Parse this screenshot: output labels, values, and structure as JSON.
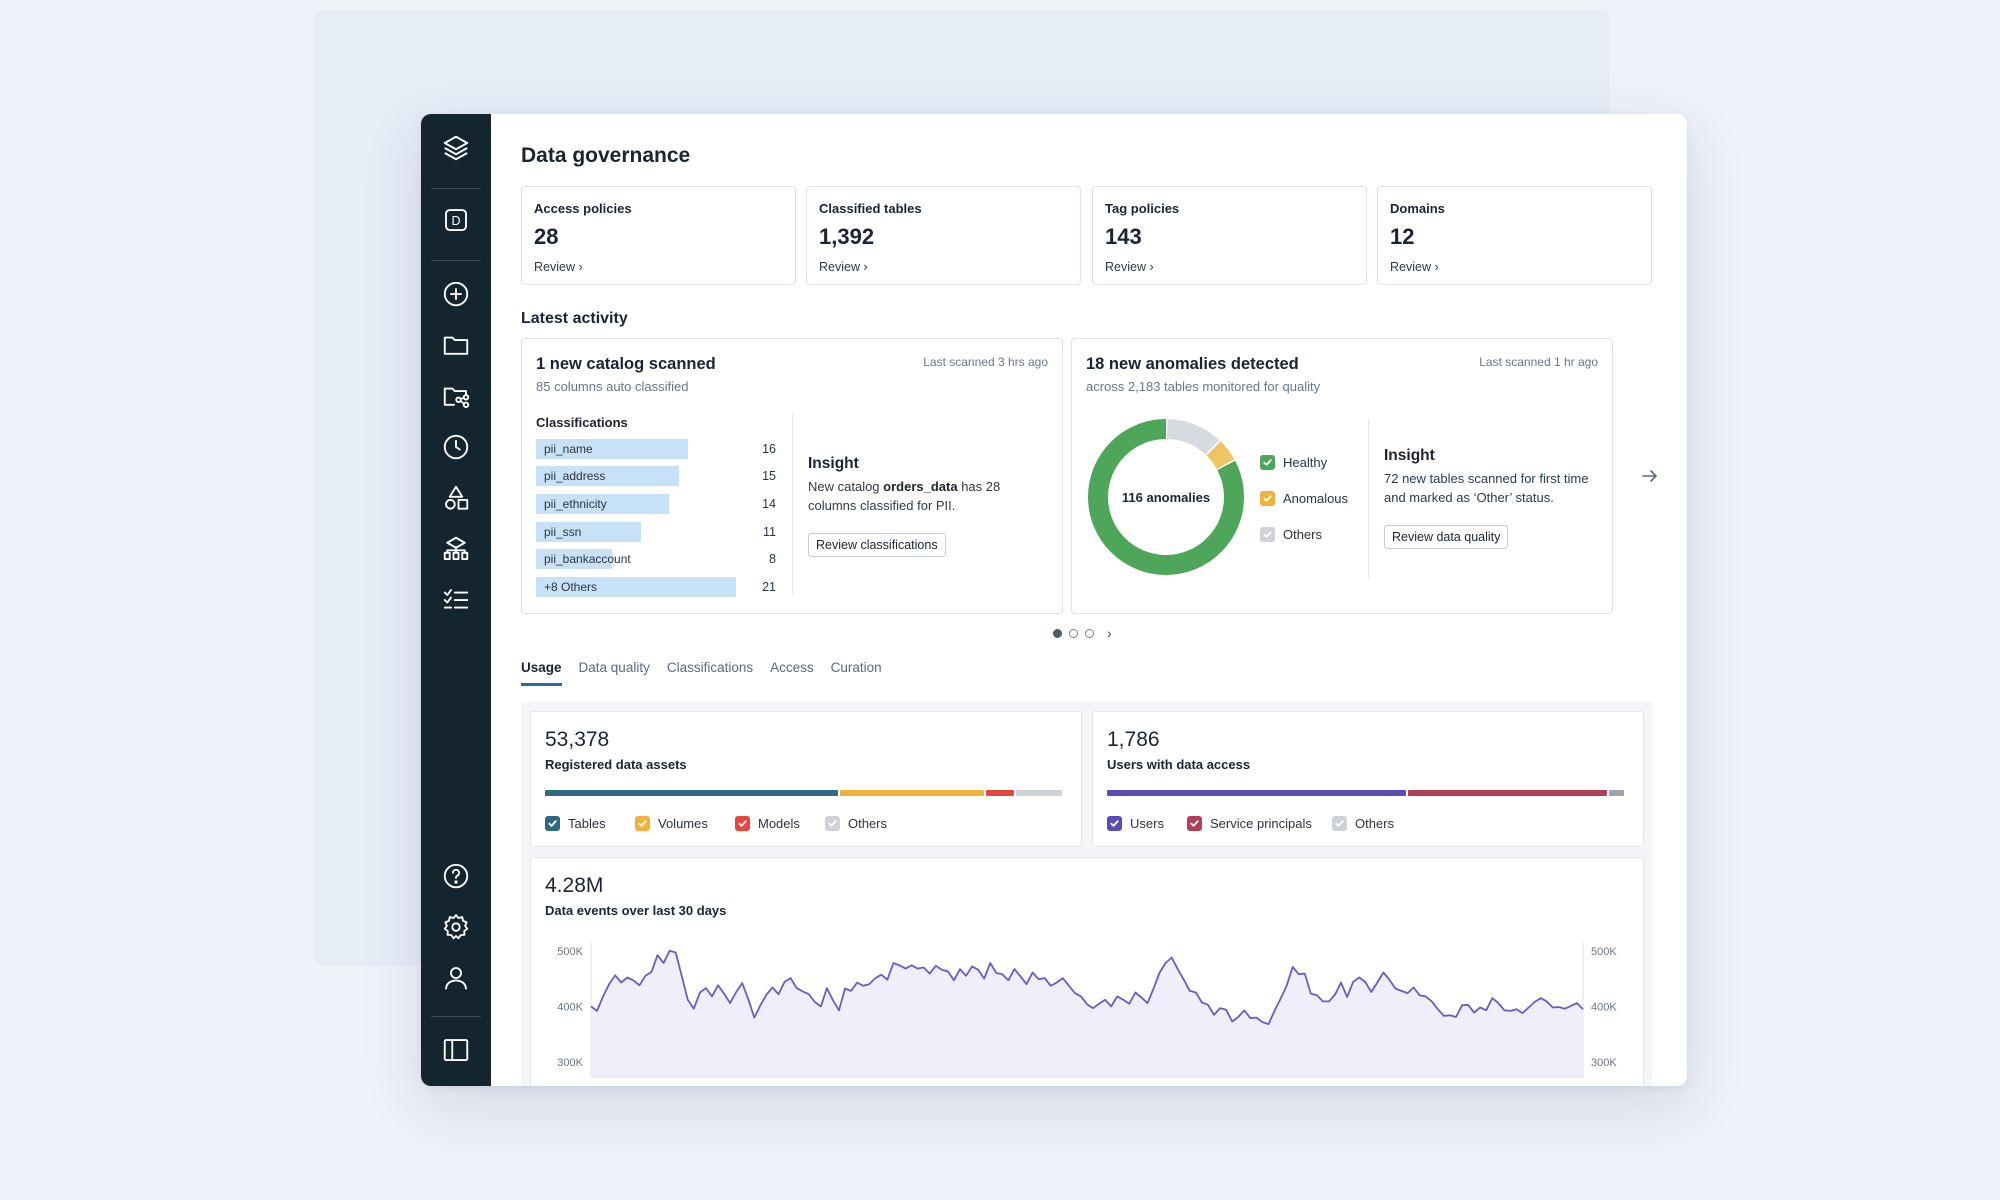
{
  "page": {
    "title": "Data governance"
  },
  "sidebar": {
    "items": [
      {
        "icon": "layers-logo-icon"
      },
      {
        "icon": "workspace-d-icon",
        "label": "D"
      },
      {
        "icon": "add-circle-icon"
      },
      {
        "icon": "folder-icon"
      },
      {
        "icon": "folder-share-icon"
      },
      {
        "icon": "clock-icon"
      },
      {
        "icon": "shapes-icon"
      },
      {
        "icon": "hierarchy-icon"
      },
      {
        "icon": "checklist-icon"
      },
      {
        "icon": "help-icon"
      },
      {
        "icon": "settings-icon"
      },
      {
        "icon": "user-icon"
      },
      {
        "icon": "panel-toggle-icon"
      }
    ]
  },
  "stats": [
    {
      "label": "Access policies",
      "value": "28",
      "link": "Review ›"
    },
    {
      "label": "Classified tables",
      "value": "1,392",
      "link": "Review ›"
    },
    {
      "label": "Tag policies",
      "value": "143",
      "link": "Review ›"
    },
    {
      "label": "Domains",
      "value": "12",
      "link": "Review ›"
    }
  ],
  "latest_activity": {
    "heading": "Latest activity",
    "catalog": {
      "title": "1 new catalog scanned",
      "subtitle": "85 columns auto classified",
      "time": "Last scanned 3 hrs ago",
      "classifications_heading": "Classifications",
      "classifications": [
        {
          "name": "pii_name",
          "count": 16
        },
        {
          "name": "pii_address",
          "count": 15
        },
        {
          "name": "pii_ethnicity",
          "count": 14
        },
        {
          "name": "pii_ssn",
          "count": 11
        },
        {
          "name": "pii_bankaccount",
          "count": 8
        },
        {
          "name": "+8 Others",
          "count": 21
        }
      ],
      "insight_heading": "Insight",
      "insight_pre": "New catalog ",
      "insight_bold": "orders_data",
      "insight_post": " has 28 columns classified for PII.",
      "button": "Review classifications"
    },
    "anomalies": {
      "title": "18 new anomalies detected",
      "subtitle": "across 2,183 tables monitored for quality",
      "time": "Last scanned 1 hr ago",
      "donut_label": "116 anomalies",
      "donut": [
        {
          "name": "Healthy",
          "value": 83,
          "color": "#4ea65b"
        },
        {
          "name": "Anomalous",
          "value": 5,
          "color": "#f0c460"
        },
        {
          "name": "Others",
          "value": 12,
          "color": "#d5dbe1"
        }
      ],
      "insight_heading": "Insight",
      "insight_text": "72 new tables scanned for first time and marked as ‘Other’ status.",
      "button": "Review data quality"
    },
    "pagination": {
      "pages": 3,
      "active": 0
    }
  },
  "tabs": [
    {
      "label": "Usage",
      "active": true
    },
    {
      "label": "Data quality",
      "active": false
    },
    {
      "label": "Classifications",
      "active": false
    },
    {
      "label": "Access",
      "active": false
    },
    {
      "label": "Curation",
      "active": false
    }
  ],
  "usage": {
    "assets": {
      "value": "53,378",
      "label": "Registered data assets",
      "segments": [
        {
          "name": "Tables",
          "fraction": 0.57,
          "color": "#2e6b82"
        },
        {
          "name": "Volumes",
          "fraction": 0.28,
          "color": "#f0b13d"
        },
        {
          "name": "Models",
          "fraction": 0.055,
          "color": "#e5473a"
        },
        {
          "name": "Others",
          "fraction": 0.09,
          "color": "#cdd3d9"
        }
      ]
    },
    "access": {
      "value": "1,786",
      "label": "Users with data access",
      "segments": [
        {
          "name": "Users",
          "fraction": 0.58,
          "color": "#5c4bb4"
        },
        {
          "name": "Service principals",
          "fraction": 0.385,
          "color": "#b0405a"
        },
        {
          "name": "Others",
          "fraction": 0.03,
          "color": "#9aa3ad"
        }
      ]
    },
    "events": {
      "value": "4.28M",
      "label": "Data events over last 30 days"
    }
  },
  "chart_data": {
    "type": "area",
    "title": "Data events over last 30 days",
    "ylim": [
      275000,
      505000
    ],
    "y_ticks": [
      "500K",
      "400K",
      "300K"
    ],
    "color": "#6b5cc4",
    "values": [
      400000,
      392000,
      418000,
      440000,
      456000,
      443000,
      452000,
      447000,
      438000,
      455000,
      462000,
      492000,
      478000,
      500000,
      497000,
      455000,
      412000,
      396000,
      425000,
      433000,
      418000,
      438000,
      423000,
      406000,
      426000,
      442000,
      413000,
      380000,
      402000,
      421000,
      434000,
      422000,
      444000,
      451000,
      433000,
      427000,
      422000,
      408000,
      400000,
      433000,
      411000,
      393000,
      432000,
      428000,
      443000,
      437000,
      440000,
      451000,
      457000,
      448000,
      478000,
      474000,
      468000,
      474000,
      468000,
      470000,
      459000,
      473000,
      466000,
      463000,
      447000,
      467000,
      455000,
      472000,
      466000,
      450000,
      478000,
      460000,
      458000,
      447000,
      467000,
      454000,
      440000,
      461000,
      449000,
      451000,
      437000,
      443000,
      451000,
      437000,
      424000,
      418000,
      404000,
      397000,
      405000,
      412000,
      400000,
      418000,
      412000,
      405000,
      425000,
      416000,
      406000,
      432000,
      461000,
      478000,
      488000,
      467000,
      448000,
      428000,
      425000,
      407000,
      403000,
      385000,
      397000,
      394000,
      373000,
      381000,
      393000,
      379000,
      380000,
      372000,
      368000,
      392000,
      414000,
      437000,
      471000,
      458000,
      459000,
      423000,
      420000,
      409000,
      409000,
      421000,
      443000,
      417000,
      444000,
      452000,
      444000,
      426000,
      443000,
      461000,
      448000,
      432000,
      428000,
      424000,
      434000,
      420000,
      418000,
      409000,
      395000,
      383000,
      384000,
      381000,
      402000,
      403000,
      389000,
      398000,
      393000,
      415000,
      406000,
      393000,
      392000,
      395000,
      388000,
      398000,
      408000,
      415000,
      409000,
      398000,
      399000,
      396000,
      401000,
      406000,
      395000
    ]
  }
}
